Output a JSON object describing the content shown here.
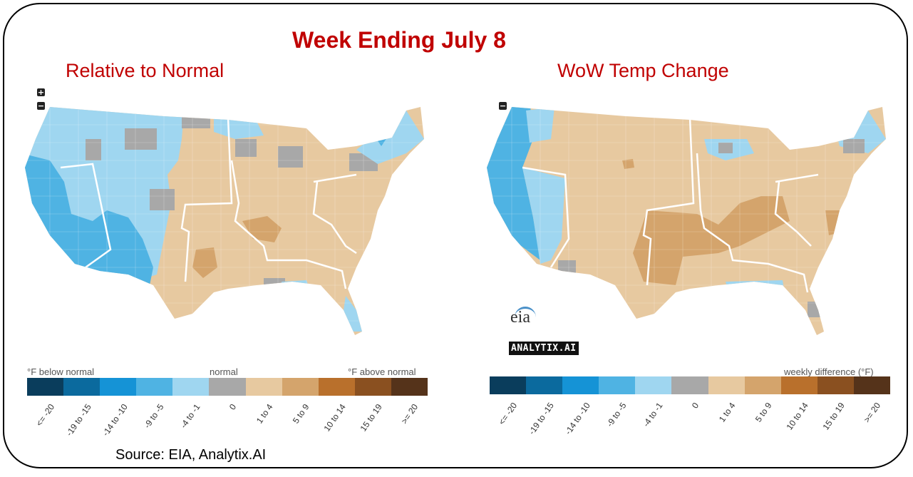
{
  "title": "Week Ending July 8",
  "left_panel": {
    "subtitle": "Relative to Normal",
    "legend_label_left": "°F below normal",
    "legend_label_center": "normal",
    "legend_label_right": "°F above normal"
  },
  "right_panel": {
    "subtitle": "WoW Temp Change",
    "legend_label_right": "weekly difference (°F)"
  },
  "legend_bins": [
    {
      "label": "<= -20",
      "color": "#0a3d5c"
    },
    {
      "label": "-19 to -15",
      "color": "#0b6a9e"
    },
    {
      "label": "-14 to -10",
      "color": "#1593d6"
    },
    {
      "label": "-9 to -5",
      "color": "#4fb3e3"
    },
    {
      "label": "-4 to -1",
      "color": "#9fd6f0"
    },
    {
      "label": "0",
      "color": "#a8a8a8"
    },
    {
      "label": "1 to 4",
      "color": "#e7c9a0"
    },
    {
      "label": "5 to 9",
      "color": "#d4a46c"
    },
    {
      "label": "10 to 14",
      "color": "#b9702c"
    },
    {
      "label": "15 to 19",
      "color": "#8a5020"
    },
    {
      "label": ">= 20",
      "color": "#55331a"
    }
  ],
  "logos": {
    "eia": "eia",
    "analytix": "ANALYTIX.AI"
  },
  "source": "Source: EIA, Analytix.AI",
  "zoom_controls": {
    "zoom_in": "+",
    "zoom_out": "−"
  }
}
